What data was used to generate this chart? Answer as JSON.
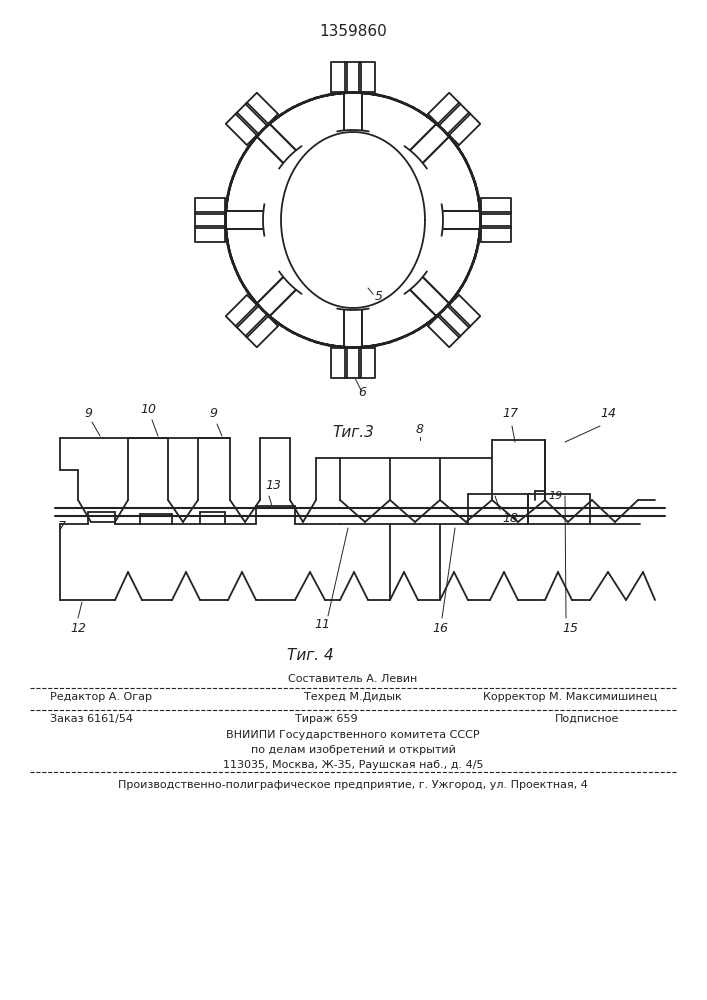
{
  "title": "1359860",
  "fig3_label": "Τиг.3",
  "fig4_label": "Τиг. 4",
  "footer_line1_center_top": "Составитель А. Левин",
  "footer_line1_left": "Редактор А. Огар",
  "footer_line1_center": "Техред М.Дидык",
  "footer_line1_right": "Корректор М. Максимишинец",
  "footer_line2_left": "Заказ 6161/54",
  "footer_line2_center": "Тираж 659",
  "footer_line2_right": "Подписное",
  "footer_line3": "ВНИИПИ Государственного комитета СССР",
  "footer_line4": "по делам изобретений и открытий",
  "footer_line5": "113035, Москва, Ж-35, Раушская наб., д. 4/5",
  "footer_line6": "Производственно-полиграфическое предприятие, г. Ужгород, ул. Проектная, 4",
  "bg_color": "#ffffff",
  "line_color": "#222222"
}
